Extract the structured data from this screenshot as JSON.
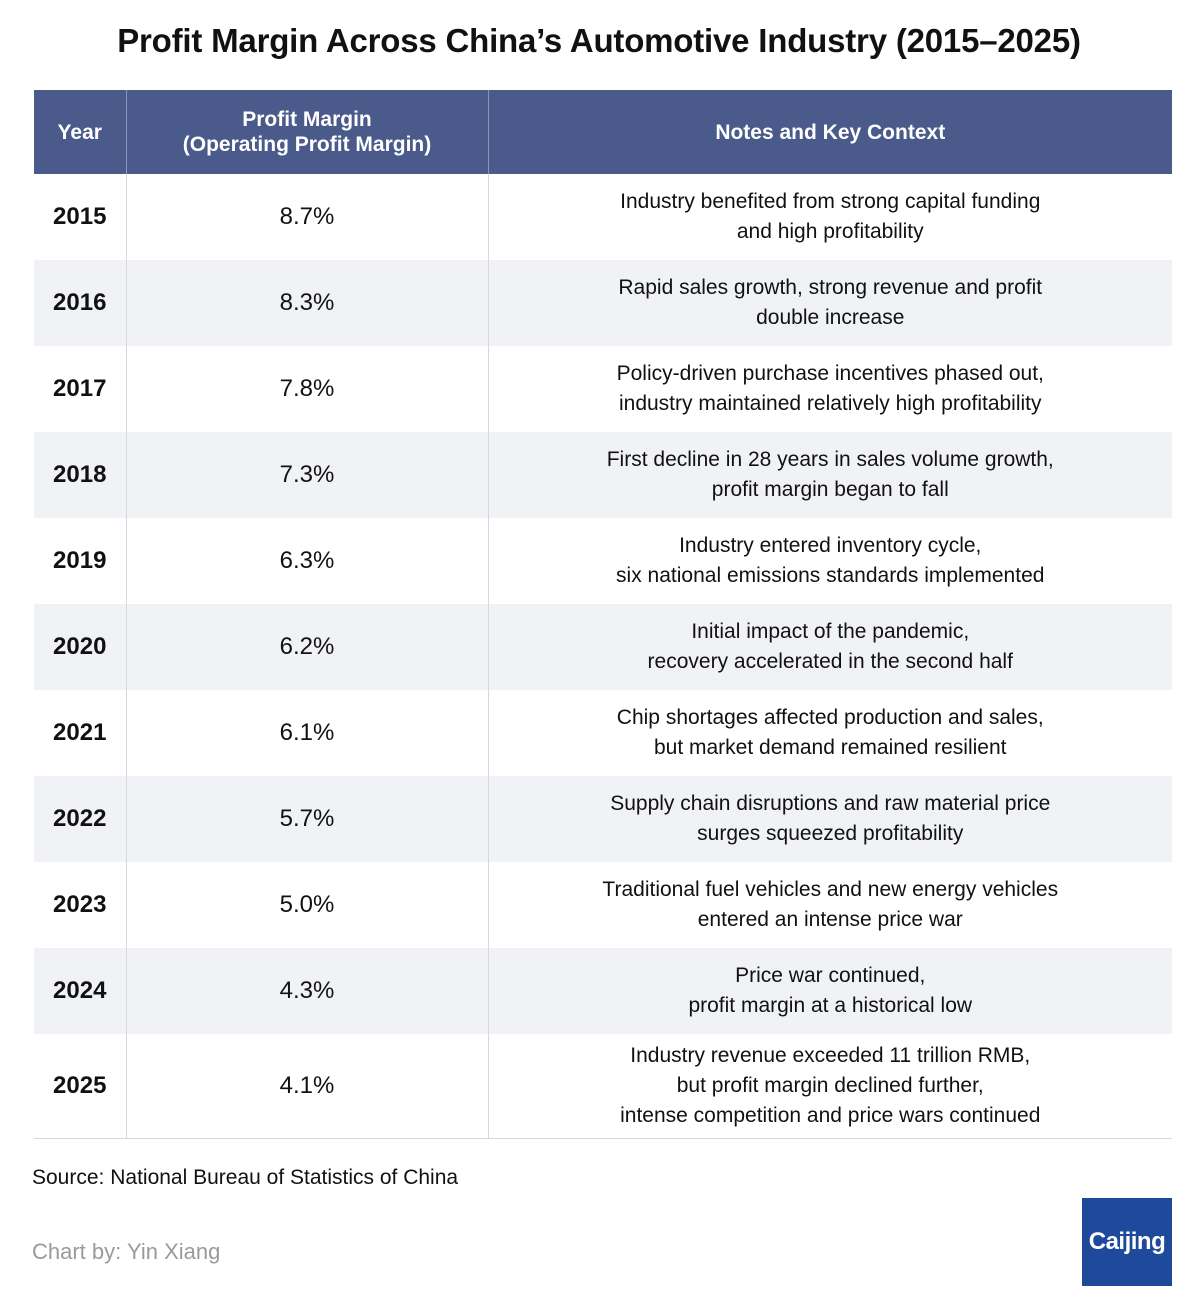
{
  "title": "Profit Margin Across China’s Automotive Industry (2015–2025)",
  "colors": {
    "header_bg": "#4a5a8a",
    "header_text": "#ffffff",
    "row_shade": "#f1f2f5",
    "logo_bg": "#1f4a9c"
  },
  "table": {
    "headers": {
      "year": "Year",
      "margin_line1": "Profit Margin",
      "margin_line2": "(Operating Profit Margin)",
      "notes": "Notes and Key Context"
    },
    "rows": [
      {
        "year": "2015",
        "margin": "8.7%",
        "notes": [
          "Industry benefited from strong capital funding",
          "and high profitability"
        ]
      },
      {
        "year": "2016",
        "margin": "8.3%",
        "notes": [
          "Rapid sales growth, strong revenue and profit",
          "double increase"
        ]
      },
      {
        "year": "2017",
        "margin": "7.8%",
        "notes": [
          "Policy-driven purchase incentives phased out,",
          "industry maintained relatively high profitability"
        ]
      },
      {
        "year": "2018",
        "margin": "7.3%",
        "notes": [
          "First decline in 28 years in sales volume growth,",
          "profit margin began to fall"
        ]
      },
      {
        "year": "2019",
        "margin": "6.3%",
        "notes": [
          "Industry entered inventory cycle,",
          "six national emissions standards implemented"
        ]
      },
      {
        "year": "2020",
        "margin": "6.2%",
        "notes": [
          "Initial impact of the pandemic,",
          "recovery accelerated in the second half"
        ]
      },
      {
        "year": "2021",
        "margin": "6.1%",
        "notes": [
          "Chip shortages affected production and sales,",
          "but market demand remained resilient"
        ]
      },
      {
        "year": "2022",
        "margin": "5.7%",
        "notes": [
          "Supply chain disruptions and raw material price",
          "surges squeezed profitability"
        ]
      },
      {
        "year": "2023",
        "margin": "5.0%",
        "notes": [
          "Traditional fuel vehicles and new energy vehicles",
          "entered an intense price war"
        ]
      },
      {
        "year": "2024",
        "margin": "4.3%",
        "notes": [
          "Price war continued,",
          "profit margin at a historical low"
        ]
      },
      {
        "year": "2025",
        "margin": "4.1%",
        "notes": [
          "Industry revenue exceeded 11 trillion RMB,",
          "but profit margin declined further,",
          "intense competition and price wars continued"
        ]
      }
    ]
  },
  "chart_data": {
    "type": "table",
    "title": "Profit Margin Across China’s Automotive Industry (2015–2025)",
    "columns": [
      "Year",
      "Profit Margin (Operating Profit Margin)",
      "Notes and Key Context"
    ],
    "x": [
      2015,
      2016,
      2017,
      2018,
      2019,
      2020,
      2021,
      2022,
      2023,
      2024,
      2025
    ],
    "values": [
      8.7,
      8.3,
      7.8,
      7.3,
      6.3,
      6.2,
      6.1,
      5.7,
      5.0,
      4.3,
      4.1
    ]
  },
  "footer": {
    "source_label": "Source:",
    "source_text": "National Bureau of Statistics of China",
    "credit_label": "Chart by:",
    "credit_name": "Yin Xiang",
    "logo_text": "Caijing"
  }
}
